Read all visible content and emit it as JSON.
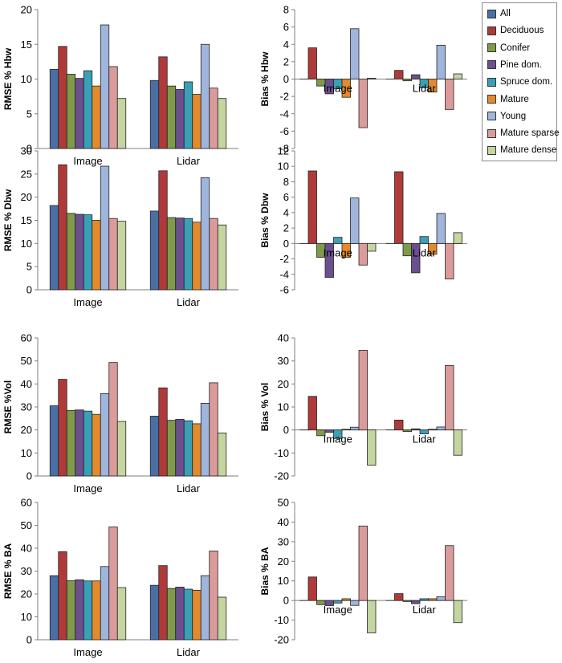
{
  "legend": {
    "series": [
      {
        "name": "All",
        "color": "#4a6fa5"
      },
      {
        "name": "Deciduous",
        "color": "#b03a3a"
      },
      {
        "name": "Conifer",
        "color": "#7f9a48"
      },
      {
        "name": "Pine dom.",
        "color": "#6b4f8f"
      },
      {
        "name": "Spruce dom.",
        "color": "#3aa0b5"
      },
      {
        "name": "Mature",
        "color": "#e38a2c"
      },
      {
        "name": "Young",
        "color": "#9fb5dc"
      },
      {
        "name": "Mature sparse",
        "color": "#dc9b9b"
      },
      {
        "name": "Mature dense",
        "color": "#c4d5a0"
      }
    ]
  },
  "chart_data": [
    {
      "type": "bar",
      "ylabel": "RMSE % Hbw",
      "categories": [
        "Image",
        "Lidar"
      ],
      "ylim": [
        0,
        20
      ],
      "yticks": [
        0,
        5,
        10,
        15,
        20
      ],
      "series": [
        {
          "name": "All",
          "values": [
            11.4,
            9.8
          ]
        },
        {
          "name": "Deciduous",
          "values": [
            14.7,
            13.2
          ]
        },
        {
          "name": "Conifer",
          "values": [
            10.7,
            9.0
          ]
        },
        {
          "name": "Pine dom.",
          "values": [
            10.1,
            8.5
          ]
        },
        {
          "name": "Spruce dom.",
          "values": [
            11.2,
            9.6
          ]
        },
        {
          "name": "Mature",
          "values": [
            9.0,
            7.8
          ]
        },
        {
          "name": "Young",
          "values": [
            17.8,
            15.0
          ]
        },
        {
          "name": "Mature sparse",
          "values": [
            11.8,
            8.7
          ]
        },
        {
          "name": "Mature dense",
          "values": [
            7.2,
            7.2
          ]
        }
      ]
    },
    {
      "type": "bar",
      "ylabel": "Bias % Hbw",
      "categories": [
        "Image",
        "Lidar"
      ],
      "ylim": [
        -8,
        8
      ],
      "yticks": [
        -8,
        -6,
        -4,
        -2,
        0,
        2,
        4,
        6,
        8
      ],
      "series": [
        {
          "name": "All",
          "values": [
            0.0,
            0.0
          ]
        },
        {
          "name": "Deciduous",
          "values": [
            3.6,
            1.0
          ]
        },
        {
          "name": "Conifer",
          "values": [
            -0.8,
            -0.2
          ]
        },
        {
          "name": "Pine dom.",
          "values": [
            -1.7,
            0.5
          ]
        },
        {
          "name": "Spruce dom.",
          "values": [
            -1.1,
            -1.0
          ]
        },
        {
          "name": "Mature",
          "values": [
            -2.1,
            -1.5
          ]
        },
        {
          "name": "Young",
          "values": [
            5.8,
            3.9
          ]
        },
        {
          "name": "Mature sparse",
          "values": [
            -5.6,
            -3.5
          ]
        },
        {
          "name": "Mature dense",
          "values": [
            0.1,
            0.6
          ]
        }
      ]
    },
    {
      "type": "bar",
      "ylabel": "RMSE % Dbw",
      "categories": [
        "Image",
        "Lidar"
      ],
      "ylim": [
        0,
        30
      ],
      "yticks": [
        0,
        5,
        10,
        15,
        20,
        25,
        30
      ],
      "series": [
        {
          "name": "All",
          "values": [
            18.2,
            17.0
          ]
        },
        {
          "name": "Deciduous",
          "values": [
            27.0,
            25.7
          ]
        },
        {
          "name": "Conifer",
          "values": [
            16.5,
            15.6
          ]
        },
        {
          "name": "Pine dom.",
          "values": [
            16.3,
            15.5
          ]
        },
        {
          "name": "Spruce dom.",
          "values": [
            16.2,
            15.4
          ]
        },
        {
          "name": "Mature",
          "values": [
            15.0,
            14.6
          ]
        },
        {
          "name": "Young",
          "values": [
            26.7,
            24.2
          ]
        },
        {
          "name": "Mature sparse",
          "values": [
            15.4,
            15.4
          ]
        },
        {
          "name": "Mature dense",
          "values": [
            14.8,
            14.0
          ]
        }
      ]
    },
    {
      "type": "bar",
      "ylabel": "Bias % Dbw",
      "categories": [
        "Image",
        "Lidar"
      ],
      "ylim": [
        -6,
        12
      ],
      "yticks": [
        -6,
        -4,
        -2,
        0,
        2,
        4,
        6,
        8,
        10,
        12
      ],
      "series": [
        {
          "name": "All",
          "values": [
            0.0,
            0.0
          ]
        },
        {
          "name": "Deciduous",
          "values": [
            9.4,
            9.3
          ]
        },
        {
          "name": "Conifer",
          "values": [
            -1.8,
            -1.6
          ]
        },
        {
          "name": "Pine dom.",
          "values": [
            -4.4,
            -3.8
          ]
        },
        {
          "name": "Spruce dom.",
          "values": [
            0.8,
            0.9
          ]
        },
        {
          "name": "Mature",
          "values": [
            -1.8,
            -1.4
          ]
        },
        {
          "name": "Young",
          "values": [
            5.9,
            3.9
          ]
        },
        {
          "name": "Mature sparse",
          "values": [
            -2.8,
            -4.6
          ]
        },
        {
          "name": "Mature dense",
          "values": [
            -1.0,
            1.4
          ]
        }
      ]
    },
    {
      "type": "bar",
      "ylabel": "RMSE %Vol",
      "categories": [
        "Image",
        "Lidar"
      ],
      "ylim": [
        0,
        60
      ],
      "yticks": [
        0,
        10,
        20,
        30,
        40,
        50,
        60
      ],
      "series": [
        {
          "name": "All",
          "values": [
            30.5,
            26.0
          ]
        },
        {
          "name": "Deciduous",
          "values": [
            42.0,
            38.3
          ]
        },
        {
          "name": "Conifer",
          "values": [
            28.5,
            24.2
          ]
        },
        {
          "name": "Pine dom.",
          "values": [
            28.7,
            24.6
          ]
        },
        {
          "name": "Spruce dom.",
          "values": [
            28.2,
            24.0
          ]
        },
        {
          "name": "Mature",
          "values": [
            26.8,
            22.7
          ]
        },
        {
          "name": "Young",
          "values": [
            35.8,
            31.6
          ]
        },
        {
          "name": "Mature sparse",
          "values": [
            49.3,
            40.5
          ]
        },
        {
          "name": "Mature dense",
          "values": [
            23.7,
            18.7
          ]
        }
      ]
    },
    {
      "type": "bar",
      "ylabel": "Bias % Vol",
      "categories": [
        "Image",
        "Lidar"
      ],
      "ylim": [
        -20,
        40
      ],
      "yticks": [
        -20,
        -10,
        0,
        10,
        20,
        30,
        40
      ],
      "series": [
        {
          "name": "All",
          "values": [
            0.0,
            0.0
          ]
        },
        {
          "name": "Deciduous",
          "values": [
            14.6,
            4.3
          ]
        },
        {
          "name": "Conifer",
          "values": [
            -2.5,
            -0.7
          ]
        },
        {
          "name": "Pine dom.",
          "values": [
            -1.0,
            0.5
          ]
        },
        {
          "name": "Spruce dom.",
          "values": [
            -3.7,
            -1.7
          ]
        },
        {
          "name": "Mature",
          "values": [
            0.3,
            0.3
          ]
        },
        {
          "name": "Young",
          "values": [
            1.2,
            1.3
          ]
        },
        {
          "name": "Mature sparse",
          "values": [
            34.6,
            28.0
          ]
        },
        {
          "name": "Mature dense",
          "values": [
            -15.3,
            -11.0
          ]
        }
      ]
    },
    {
      "type": "bar",
      "ylabel": "RMSE % BA",
      "categories": [
        "Image",
        "Lidar"
      ],
      "ylim": [
        0,
        60
      ],
      "yticks": [
        0,
        10,
        20,
        30,
        40,
        50,
        60
      ],
      "series": [
        {
          "name": "All",
          "values": [
            28.0,
            23.8
          ]
        },
        {
          "name": "Deciduous",
          "values": [
            38.5,
            32.4
          ]
        },
        {
          "name": "Conifer",
          "values": [
            25.8,
            22.4
          ]
        },
        {
          "name": "Pine dom.",
          "values": [
            26.2,
            23.0
          ]
        },
        {
          "name": "Spruce dom.",
          "values": [
            25.7,
            22.1
          ]
        },
        {
          "name": "Mature",
          "values": [
            25.7,
            21.6
          ]
        },
        {
          "name": "Young",
          "values": [
            32.0,
            28.0
          ]
        },
        {
          "name": "Mature sparse",
          "values": [
            49.3,
            38.8
          ]
        },
        {
          "name": "Mature dense",
          "values": [
            22.8,
            18.6
          ]
        }
      ]
    },
    {
      "type": "bar",
      "ylabel": "Bias % BA",
      "categories": [
        "Image",
        "Lidar"
      ],
      "ylim": [
        -20,
        50
      ],
      "yticks": [
        -20,
        -10,
        0,
        10,
        20,
        30,
        40,
        50
      ],
      "series": [
        {
          "name": "All",
          "values": [
            0.0,
            0.0
          ]
        },
        {
          "name": "Deciduous",
          "values": [
            12.0,
            3.5
          ]
        },
        {
          "name": "Conifer",
          "values": [
            -2.1,
            -0.5
          ]
        },
        {
          "name": "Pine dom.",
          "values": [
            -2.6,
            -1.6
          ]
        },
        {
          "name": "Spruce dom.",
          "values": [
            -1.3,
            0.9
          ]
        },
        {
          "name": "Mature",
          "values": [
            0.9,
            0.9
          ]
        },
        {
          "name": "Young",
          "values": [
            -2.5,
            2.0
          ]
        },
        {
          "name": "Mature sparse",
          "values": [
            38.0,
            28.0
          ]
        },
        {
          "name": "Mature dense",
          "values": [
            -16.5,
            -11.3
          ]
        }
      ]
    }
  ]
}
